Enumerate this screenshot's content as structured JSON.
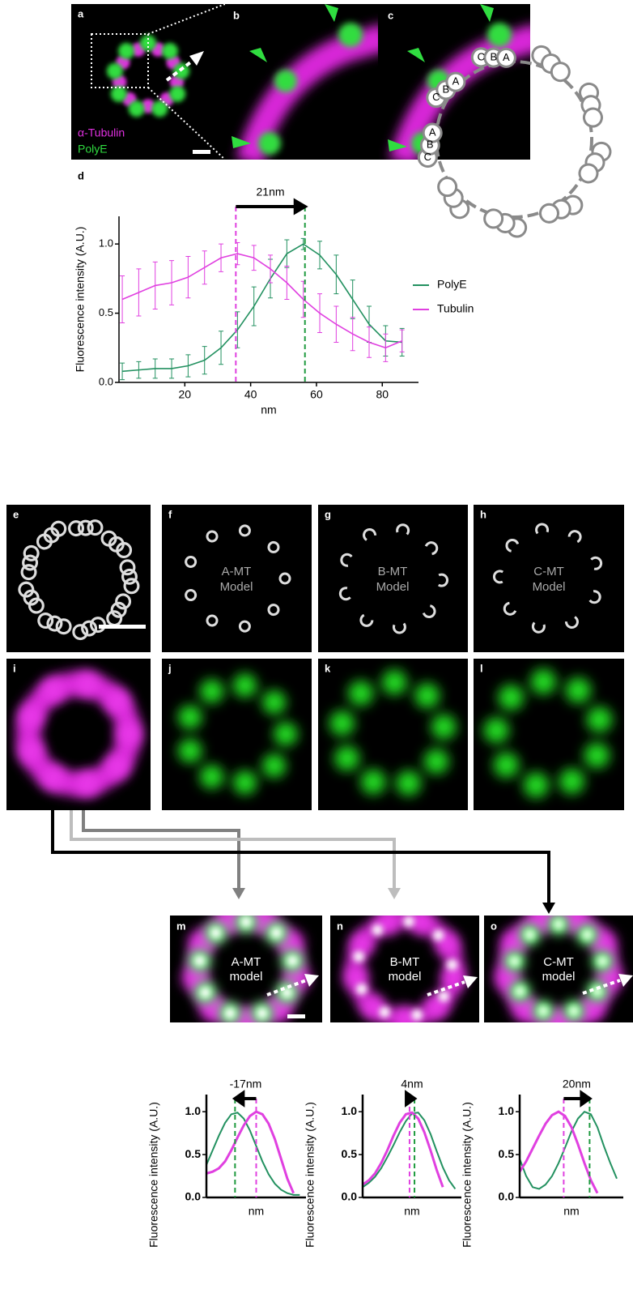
{
  "panel_labels": [
    "a",
    "b",
    "c",
    "d",
    "e",
    "f",
    "g",
    "h",
    "i",
    "j",
    "k",
    "l",
    "m",
    "n",
    "o"
  ],
  "channel_labels": [
    "α-Tubulin",
    "PolyE"
  ],
  "triplet_labels": [
    [
      "C",
      "B",
      "A"
    ],
    [
      "C",
      "B",
      "A"
    ],
    [
      "C",
      "B",
      "A"
    ]
  ],
  "model_labels": [
    [
      "A-MT",
      "Model"
    ],
    [
      "B-MT",
      "Model"
    ],
    [
      "C-MT",
      "Model"
    ]
  ],
  "merge_labels": [
    [
      "A-MT",
      "model"
    ],
    [
      "B-MT",
      "model"
    ],
    [
      "C-MT",
      "model"
    ]
  ],
  "chart_data": [
    {
      "type": "line",
      "xlabel": "nm",
      "ylabel": "Fluorescence intensity (A.U.)",
      "annotation": "21nm",
      "vlines": [
        {
          "x": 35.5,
          "color": "#e040e0"
        },
        {
          "x": 56.5,
          "color": "#1f9a3f"
        }
      ],
      "x": [
        1,
        6,
        11,
        16,
        21,
        26,
        31,
        36,
        41,
        46,
        51,
        56,
        61,
        66,
        71,
        76,
        81,
        86
      ],
      "xlim": [
        0,
        91
      ],
      "ylim": [
        0,
        1.2
      ],
      "xticks": [
        20,
        40,
        60,
        80
      ],
      "yticks": [
        {
          "value": 0,
          "label": "0.0"
        },
        {
          "value": 0.5,
          "label": "0.5"
        },
        {
          "value": 1,
          "label": "1.0"
        }
      ],
      "legend": "right",
      "series": [
        {
          "name": "PolyE",
          "color": "#239160",
          "values": [
            0.08,
            0.09,
            0.1,
            0.1,
            0.12,
            0.16,
            0.25,
            0.38,
            0.55,
            0.75,
            0.93,
            1.0,
            0.92,
            0.78,
            0.6,
            0.42,
            0.3,
            0.29
          ],
          "errors": [
            0.06,
            0.06,
            0.07,
            0.07,
            0.08,
            0.1,
            0.12,
            0.13,
            0.14,
            0.14,
            0.1,
            0.04,
            0.1,
            0.14,
            0.14,
            0.13,
            0.11,
            0.1
          ]
        },
        {
          "name": "Tubulin",
          "color": "#e040e0",
          "values": [
            0.6,
            0.65,
            0.7,
            0.72,
            0.76,
            0.83,
            0.9,
            0.93,
            0.9,
            0.82,
            0.72,
            0.6,
            0.5,
            0.42,
            0.35,
            0.29,
            0.25,
            0.3
          ],
          "errors": [
            0.17,
            0.17,
            0.17,
            0.16,
            0.15,
            0.12,
            0.1,
            0.08,
            0.09,
            0.1,
            0.12,
            0.13,
            0.14,
            0.13,
            0.12,
            0.11,
            0.1,
            0.08
          ]
        }
      ]
    },
    {
      "type": "line",
      "xlabel": "nm",
      "ylabel": "Fluorescence intensity (A.U.)",
      "annotation": "-17nm",
      "vlines": [
        {
          "x": 40,
          "color": "#e040e0"
        },
        {
          "x": 23,
          "color": "#1f9a3f"
        }
      ],
      "x": [
        0,
        5,
        10,
        15,
        20,
        25,
        30,
        35,
        40,
        45,
        50,
        55,
        60,
        65,
        70,
        75
      ],
      "xlim": [
        0,
        80
      ],
      "ylim": [
        0,
        1.2
      ],
      "yticks": [
        {
          "value": 0,
          "label": "0.0"
        },
        {
          "value": 0.5,
          "label": "0.5"
        },
        {
          "value": 1,
          "label": "1.0"
        }
      ],
      "series": [
        {
          "color": "#239160",
          "values": [
            0.38,
            0.55,
            0.72,
            0.87,
            0.97,
            0.99,
            0.92,
            0.78,
            0.6,
            0.42,
            0.27,
            0.16,
            0.09,
            0.05,
            0.03,
            0.03
          ]
        },
        {
          "color": "#e040e0",
          "values": [
            0.28,
            0.3,
            0.34,
            0.42,
            0.55,
            0.7,
            0.84,
            0.95,
            1.0,
            0.97,
            0.86,
            0.68,
            0.45,
            0.22,
            0.05,
            null
          ]
        }
      ]
    },
    {
      "type": "line",
      "xlabel": "nm",
      "ylabel": "Fluorescence intensity (A.U.)",
      "annotation": "4nm",
      "vlines": [
        {
          "x": 38,
          "color": "#e040e0"
        },
        {
          "x": 42,
          "color": "#1f9a3f"
        }
      ],
      "x": [
        0,
        5,
        10,
        15,
        20,
        25,
        30,
        35,
        40,
        45,
        50,
        55,
        60,
        65,
        70,
        75
      ],
      "xlim": [
        0,
        80
      ],
      "ylim": [
        0,
        1.2
      ],
      "yticks": [
        {
          "value": 0,
          "label": "0.0"
        },
        {
          "value": 0.5,
          "label": "0.5"
        },
        {
          "value": 1,
          "label": "1.0"
        }
      ],
      "series": [
        {
          "color": "#239160",
          "values": [
            0.12,
            0.17,
            0.24,
            0.34,
            0.47,
            0.61,
            0.76,
            0.89,
            0.98,
            0.99,
            0.9,
            0.74,
            0.54,
            0.35,
            0.2,
            0.1
          ]
        },
        {
          "color": "#e040e0",
          "values": [
            0.15,
            0.2,
            0.28,
            0.4,
            0.55,
            0.72,
            0.87,
            0.97,
            0.99,
            0.92,
            0.76,
            0.55,
            0.32,
            0.12,
            null,
            null
          ]
        }
      ]
    },
    {
      "type": "line",
      "xlabel": "nm",
      "ylabel": "Fluorescence intensity (A.U.)",
      "annotation": "20nm",
      "vlines": [
        {
          "x": 34,
          "color": "#e040e0"
        },
        {
          "x": 54,
          "color": "#1f9a3f"
        }
      ],
      "x": [
        0,
        5,
        10,
        15,
        20,
        25,
        30,
        35,
        40,
        45,
        50,
        55,
        60,
        65,
        70,
        75
      ],
      "xlim": [
        0,
        80
      ],
      "ylim": [
        0,
        1.2
      ],
      "yticks": [
        {
          "value": 0,
          "label": "0.0"
        },
        {
          "value": 0.5,
          "label": "0.5"
        },
        {
          "value": 1,
          "label": "1.0"
        }
      ],
      "series": [
        {
          "color": "#239160",
          "values": [
            0.45,
            0.25,
            0.12,
            0.1,
            0.15,
            0.25,
            0.4,
            0.58,
            0.77,
            0.92,
            1.0,
            0.97,
            0.82,
            0.6,
            0.4,
            0.22
          ]
        },
        {
          "color": "#e040e0",
          "values": [
            0.3,
            0.42,
            0.57,
            0.72,
            0.86,
            0.96,
            1.0,
            0.95,
            0.82,
            0.62,
            0.4,
            0.2,
            0.05,
            null,
            null,
            null
          ]
        }
      ]
    }
  ]
}
